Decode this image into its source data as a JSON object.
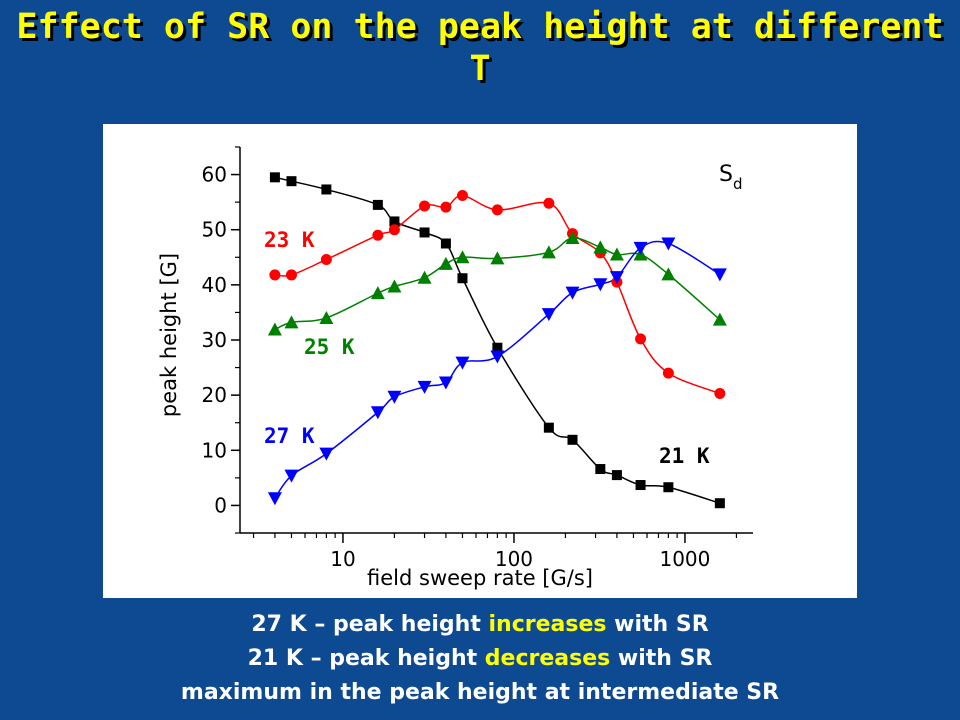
{
  "title": "Effect of SR on the peak height at different T",
  "caption": {
    "line1": {
      "pre": "27 K – peak height ",
      "hl": "increases",
      "post": " with SR"
    },
    "line2": {
      "pre": "21 K – peak height ",
      "hl": "decreases",
      "post": " with SR"
    },
    "line3": "maximum in the peak height at intermediate SR"
  },
  "colors": {
    "background": "#0d4a92",
    "title": "#ffff00",
    "highlight": "#ffff00"
  },
  "chart_data": {
    "type": "scatter",
    "title": "",
    "xlabel": "field sweep rate [G/s]",
    "ylabel": "peak height [G]",
    "x_scale": "log",
    "xlim": [
      2.5,
      2500
    ],
    "ylim": [
      -5,
      65
    ],
    "x_ticks": [
      10,
      100,
      1000
    ],
    "y_ticks": [
      0,
      10,
      20,
      30,
      40,
      50,
      60
    ],
    "grid": false,
    "annotation": {
      "main": "S",
      "sub": "d"
    },
    "series": [
      {
        "name": "21 K",
        "color": "#000000",
        "marker": "square",
        "x": [
          4,
          5,
          8,
          16,
          20,
          30,
          40,
          50,
          80,
          160,
          220,
          320,
          400,
          550,
          800,
          1600
        ],
        "y": [
          59.5,
          58.8,
          57.3,
          54.5,
          51.5,
          49.5,
          47.5,
          41.2,
          28.6,
          14.1,
          11.9,
          6.6,
          5.5,
          3.7,
          3.3,
          0.4
        ]
      },
      {
        "name": "23 K",
        "color": "#ff0000",
        "marker": "circle",
        "x": [
          4,
          5,
          8,
          16,
          20,
          30,
          40,
          50,
          80,
          160,
          220,
          320,
          400,
          550,
          800,
          1600
        ],
        "y": [
          41.8,
          41.8,
          44.6,
          49.0,
          50.0,
          54.3,
          54.1,
          56.2,
          53.6,
          54.8,
          49.3,
          45.8,
          40.5,
          30.2,
          24.0,
          20.3
        ]
      },
      {
        "name": "25 K",
        "color": "#008000",
        "marker": "triangle-up",
        "x": [
          4,
          5,
          8,
          16,
          20,
          30,
          40,
          50,
          80,
          160,
          220,
          320,
          400,
          550,
          800,
          1600
        ],
        "y": [
          31.9,
          33.2,
          34.0,
          38.5,
          39.7,
          41.3,
          43.8,
          45.0,
          44.8,
          45.9,
          48.5,
          46.8,
          45.5,
          45.5,
          41.9,
          33.7
        ]
      },
      {
        "name": "27 K",
        "color": "#0000ff",
        "marker": "triangle-down",
        "x": [
          4,
          5,
          8,
          16,
          20,
          30,
          40,
          50,
          80,
          160,
          220,
          320,
          400,
          550,
          800,
          1600
        ],
        "y": [
          1.3,
          5.4,
          9.4,
          16.9,
          19.7,
          21.5,
          22.3,
          25.9,
          27.0,
          34.7,
          38.6,
          40.1,
          41.4,
          46.7,
          47.5,
          41.9
        ]
      }
    ]
  }
}
